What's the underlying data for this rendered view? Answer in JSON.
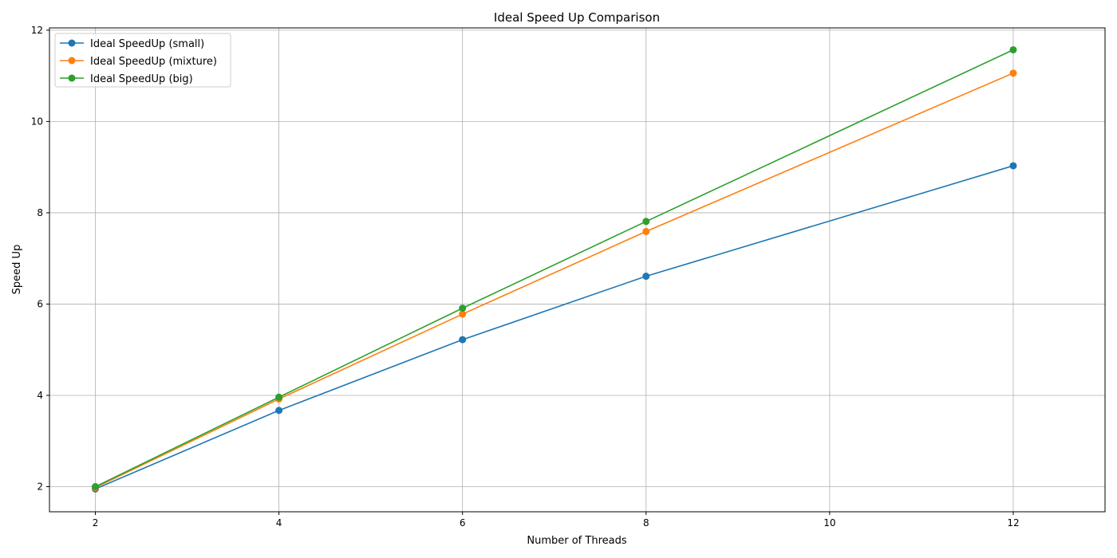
{
  "chart_data": {
    "type": "line",
    "title": "Ideal Speed Up Comparison",
    "xlabel": "Number of Threads",
    "ylabel": "Speed Up",
    "x": [
      2,
      4,
      6,
      8,
      12
    ],
    "xlim": [
      1.5,
      13
    ],
    "ylim": [
      1.45,
      12.05
    ],
    "xticks": [
      2,
      4,
      6,
      8,
      10,
      12
    ],
    "yticks": [
      2,
      4,
      6,
      8,
      10,
      12
    ],
    "grid": true,
    "legend_position": "top-left",
    "series": [
      {
        "name": "Ideal SpeedUp (small)",
        "color": "#1f77b4",
        "values": [
          1.95,
          3.67,
          5.22,
          6.61,
          9.03
        ]
      },
      {
        "name": "Ideal SpeedUp (mixture)",
        "color": "#ff7f0e",
        "values": [
          1.98,
          3.92,
          5.78,
          7.59,
          11.06
        ]
      },
      {
        "name": "Ideal SpeedUp (big)",
        "color": "#2ca02c",
        "values": [
          2.0,
          3.96,
          5.91,
          7.81,
          11.57
        ]
      }
    ]
  }
}
